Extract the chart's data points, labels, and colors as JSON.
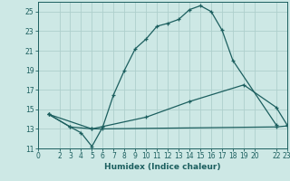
{
  "xlabel": "Humidex (Indice chaleur)",
  "xlim": [
    0,
    23
  ],
  "ylim": [
    11,
    26
  ],
  "yticks": [
    11,
    13,
    15,
    17,
    19,
    21,
    23,
    25
  ],
  "xticks": [
    0,
    2,
    3,
    4,
    5,
    6,
    7,
    8,
    9,
    10,
    11,
    12,
    13,
    14,
    15,
    16,
    17,
    18,
    19,
    20,
    22,
    23
  ],
  "bg_color": "#cde8e5",
  "grid_color": "#aecfcc",
  "line_color": "#1c5f5f",
  "line1_x": [
    1,
    3,
    4,
    5,
    6,
    7,
    8,
    9,
    10,
    11,
    12,
    13,
    14,
    15,
    16,
    17,
    18,
    22
  ],
  "line1_y": [
    14.5,
    13.2,
    12.6,
    11.2,
    13.2,
    16.5,
    19.0,
    21.2,
    22.2,
    23.5,
    23.8,
    24.2,
    25.2,
    25.6,
    25.0,
    23.1,
    20.0,
    13.4
  ],
  "line2_x": [
    1,
    3,
    5,
    6,
    22,
    23
  ],
  "line2_y": [
    14.5,
    13.2,
    13.0,
    13.0,
    13.2,
    13.3
  ],
  "line3_x": [
    1,
    5,
    10,
    14,
    19,
    22,
    23
  ],
  "line3_y": [
    14.5,
    13.0,
    14.2,
    15.8,
    17.5,
    15.2,
    13.4
  ]
}
